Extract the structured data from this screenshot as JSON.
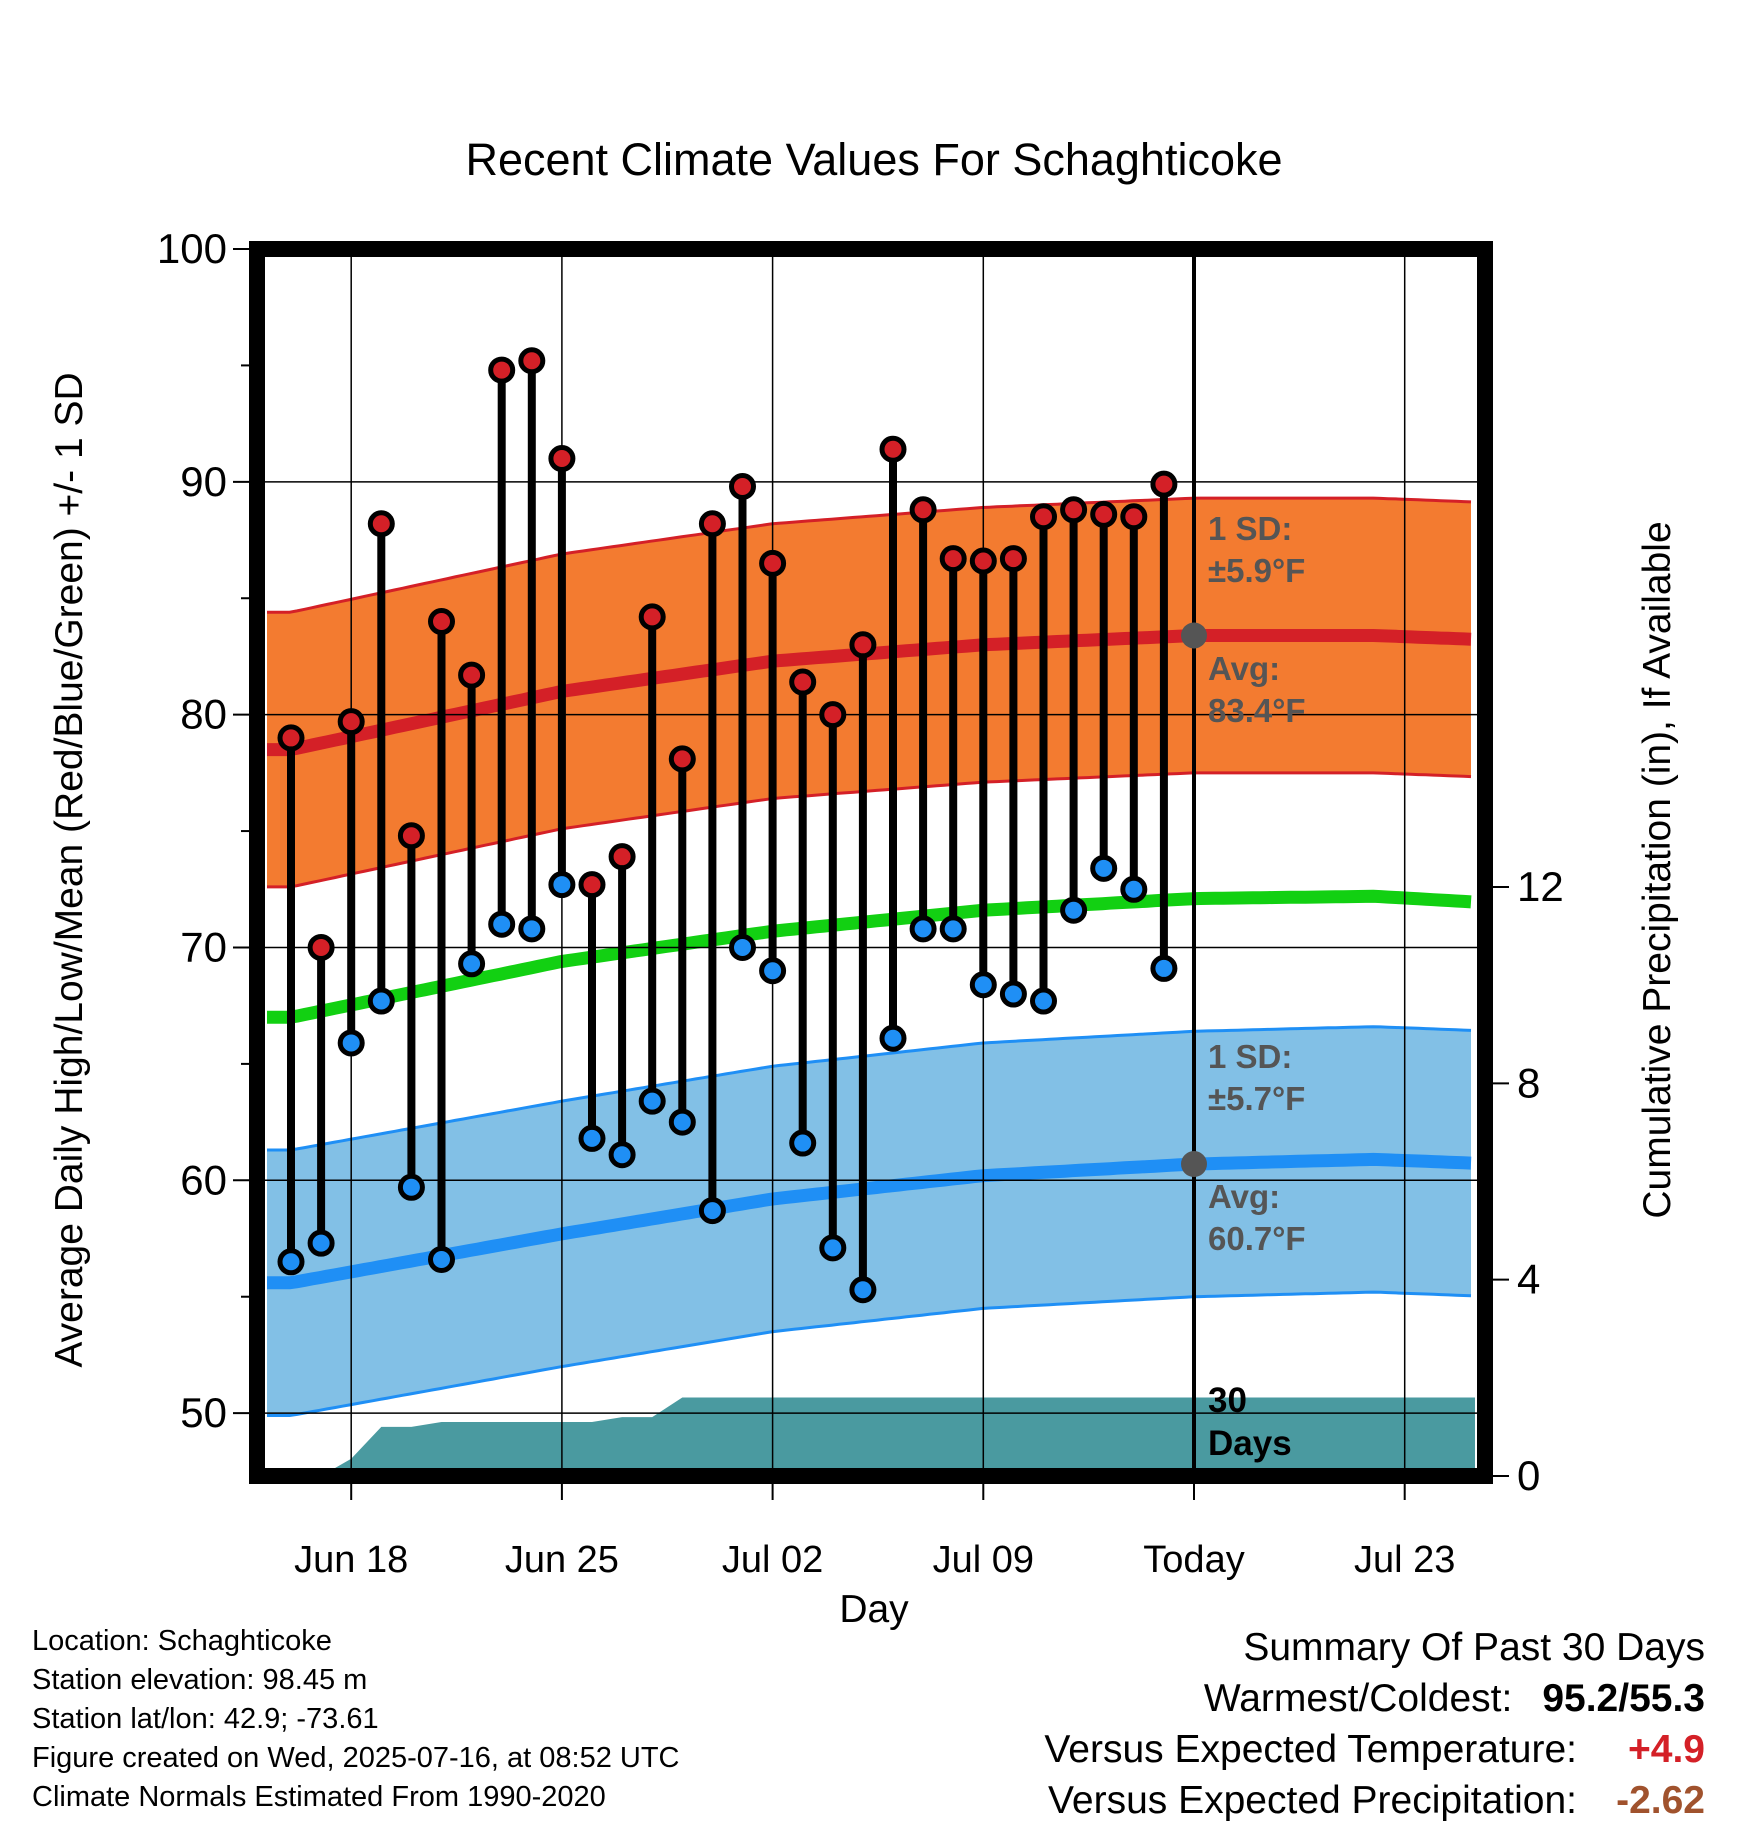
{
  "chart_data": {
    "type": "line",
    "title": "Recent Climate Values For Schaghticoke",
    "xlabel": "Day",
    "ylabel": "Average Daily High/Low/Mean (Red/Blue/Green) +/- 1 SD",
    "y2label": "Cumulative Precipitation (in), If Available",
    "ylim": [
      47.3,
      100
    ],
    "y2lim": [
      0,
      25
    ],
    "y_ticks": [
      "100",
      "90",
      "80",
      "70",
      "60",
      "50"
    ],
    "y_minor_ticks": [
      95,
      85,
      75,
      65,
      55
    ],
    "y2_ticks": [
      "0",
      "4",
      "8",
      "12"
    ],
    "x_ticks": [
      "Jun 18",
      "Jun 25",
      "Jul 02",
      "Jul 09",
      "Today",
      "Jul 23"
    ],
    "x_tick_day_index": [
      3,
      10,
      17,
      24,
      31,
      38
    ],
    "x_range_day_index": [
      0.55,
      40.7
    ],
    "grid": true,
    "highs": [
      79.0,
      70.0,
      79.7,
      88.2,
      74.8,
      84.0,
      81.7,
      94.8,
      95.2,
      91.0,
      72.7,
      73.9,
      84.2,
      78.1,
      88.2,
      89.8,
      86.5,
      81.4,
      80.0,
      83.0,
      91.4,
      88.8,
      86.7,
      86.6,
      86.7,
      88.5,
      88.8,
      88.6,
      88.5,
      89.9
    ],
    "lows": [
      56.5,
      57.3,
      65.9,
      67.7,
      59.7,
      56.6,
      69.3,
      71.0,
      70.8,
      72.7,
      61.8,
      61.1,
      63.4,
      62.5,
      58.7,
      70.0,
      69.0,
      61.6,
      57.1,
      55.3,
      66.1,
      70.8,
      70.8,
      68.4,
      68.0,
      67.7,
      71.6,
      73.4,
      72.5,
      69.1
    ],
    "normal_high": {
      "series_day_index": [
        1,
        10,
        17,
        24,
        31,
        37,
        41
      ],
      "values": [
        78.5,
        81.0,
        82.3,
        83.0,
        83.4,
        83.4,
        83.2
      ]
    },
    "normal_high_sd": 5.9,
    "normal_low": {
      "series_day_index": [
        1,
        10,
        17,
        24,
        31,
        37,
        41
      ],
      "values": [
        55.6,
        57.7,
        59.2,
        60.2,
        60.7,
        60.9,
        60.7
      ]
    },
    "normal_low_sd": 5.7,
    "normal_mean": {
      "series_day_index": [
        1,
        10,
        17,
        24,
        31,
        37,
        41
      ],
      "values": [
        67.0,
        69.4,
        70.7,
        71.6,
        72.1,
        72.2,
        71.9
      ]
    },
    "precip_cumulative": [
      0,
      0.35,
      1.0,
      1.0,
      1.1,
      1.1,
      1.1,
      1.1,
      1.1,
      1.1,
      1.2,
      1.2,
      1.6,
      1.6,
      1.6,
      1.6,
      1.6,
      1.6,
      1.6,
      1.6,
      1.6,
      1.6,
      1.6,
      1.6,
      1.6,
      1.6,
      1.6,
      1.6,
      1.6,
      1.6,
      1.6
    ],
    "annotations": {
      "high_sd_label": [
        "1 SD:",
        "±5.9°F"
      ],
      "high_avg_label": [
        "Avg:",
        "83.4°F"
      ],
      "low_sd_label": [
        "1 SD:",
        "±5.7°F"
      ],
      "low_avg_label": [
        "Avg:",
        "60.7°F"
      ],
      "period_label": [
        "30",
        "Days"
      ]
    },
    "colors": {
      "high_band": "#f37b30",
      "high_line": "#d42027",
      "high_dot": "#d42027",
      "low_band": "#82c0e6",
      "low_line": "#1f8ff5",
      "low_dot": "#1f8ff5",
      "mean_line": "#12d012",
      "precip": "#4a9aa0",
      "annotation_text": "#555555",
      "today_marker": "#555555"
    }
  },
  "footer": {
    "location": "Location: Schaghticoke",
    "elevation": "Station elevation: 98.45 m",
    "latlon": "Station lat/lon: 42.9; -73.61",
    "created": "Figure created on Wed, 2025-07-16, at 08:52 UTC",
    "normals": "Climate Normals Estimated From 1990-2020"
  },
  "summary": {
    "title": "Summary Of Past 30 Days",
    "warm_cold_label": "Warmest/Coldest:",
    "warm_cold_value": "95.2/55.3",
    "temp_label": "Versus Expected Temperature:",
    "temp_value": "+4.9",
    "temp_color": "#d42027",
    "precip_label": "Versus Expected Precipitation:",
    "precip_value": "-2.62",
    "precip_color": "#a0522d"
  }
}
